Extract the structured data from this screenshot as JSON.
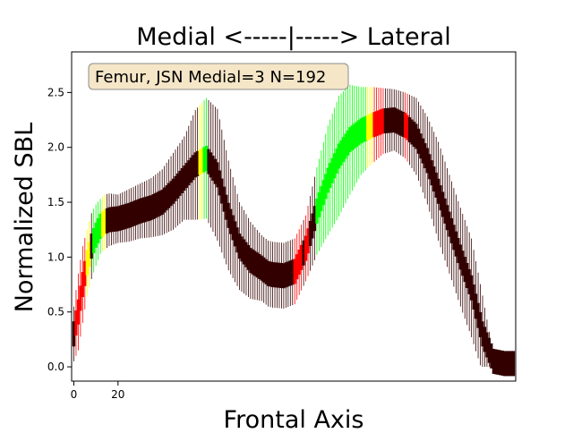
{
  "chart_data": {
    "type": "line",
    "title": "Medial <-----|-----> Lateral",
    "xlabel": "Frontal Axis",
    "ylabel": "Normalized SBL",
    "annotation": "Femur, JSN Medial=3 N=192",
    "xlim": [
      -1,
      200
    ],
    "ylim": [
      -0.13,
      2.87
    ],
    "x_ticks": [
      0,
      20
    ],
    "x_tick_labels": [
      "0",
      "20"
    ],
    "y_ticks": [
      0.0,
      0.5,
      1.0,
      1.5,
      2.0,
      2.5
    ],
    "y_tick_labels": [
      "0.0",
      "0.5",
      "1.0",
      "1.5",
      "2.0",
      "2.5"
    ],
    "grid": false,
    "colors": {
      "not_significant": "#330000",
      "significant": "#ff0000",
      "moderate": "#ffff00",
      "strong": "#00ff00",
      "annotation_box": "#f5e6c8"
    },
    "series": [
      {
        "x": [
          0,
          2,
          4,
          6,
          8,
          10,
          12,
          14,
          16,
          20,
          25,
          30,
          35,
          40,
          45,
          50,
          55,
          60,
          65,
          70,
          75,
          80,
          85,
          88,
          90,
          95,
          100,
          105,
          110,
          115,
          120,
          125,
          130,
          135,
          140,
          145,
          150,
          155,
          160,
          165,
          170,
          175,
          180,
          185,
          190,
          195,
          199
        ],
        "y": [
          0.3,
          0.5,
          0.75,
          0.95,
          1.1,
          1.2,
          1.28,
          1.32,
          1.34,
          1.35,
          1.38,
          1.42,
          1.45,
          1.5,
          1.6,
          1.72,
          1.84,
          1.9,
          1.75,
          1.38,
          1.1,
          0.97,
          0.9,
          0.85,
          0.84,
          0.83,
          0.87,
          1.08,
          1.42,
          1.7,
          1.92,
          2.07,
          2.15,
          2.2,
          2.24,
          2.25,
          2.2,
          2.1,
          1.88,
          1.6,
          1.3,
          1.0,
          0.72,
          0.3,
          0.05,
          0.03,
          0.03
        ],
        "err": [
          0.25,
          0.35,
          0.35,
          0.3,
          0.3,
          0.28,
          0.25,
          0.25,
          0.24,
          0.22,
          0.24,
          0.25,
          0.27,
          0.3,
          0.35,
          0.38,
          0.5,
          0.55,
          0.6,
          0.5,
          0.4,
          0.35,
          0.3,
          0.3,
          0.3,
          0.3,
          0.3,
          0.3,
          0.4,
          0.5,
          0.55,
          0.5,
          0.4,
          0.35,
          0.3,
          0.28,
          0.3,
          0.35,
          0.4,
          0.45,
          0.45,
          0.45,
          0.45,
          0.35,
          0.05,
          0.03,
          0.03
        ]
      }
    ],
    "highlight_ranges": [
      {
        "x0": 1,
        "x1": 6,
        "level": "significant"
      },
      {
        "x0": 6,
        "x1": 8,
        "level": "moderate"
      },
      {
        "x0": 9,
        "x1": 13,
        "level": "strong"
      },
      {
        "x0": 13,
        "x1": 15,
        "level": "moderate"
      },
      {
        "x0": 57,
        "x1": 59,
        "level": "moderate"
      },
      {
        "x0": 59,
        "x1": 61,
        "level": "strong"
      },
      {
        "x0": 100,
        "x1": 104,
        "level": "significant"
      },
      {
        "x0": 105,
        "x1": 107,
        "level": "significant"
      },
      {
        "x0": 110,
        "x1": 133,
        "level": "strong"
      },
      {
        "x0": 133,
        "x1": 136,
        "level": "moderate"
      },
      {
        "x0": 136,
        "x1": 141,
        "level": "significant"
      },
      {
        "x0": 150,
        "x1": 152,
        "level": "significant"
      }
    ]
  }
}
